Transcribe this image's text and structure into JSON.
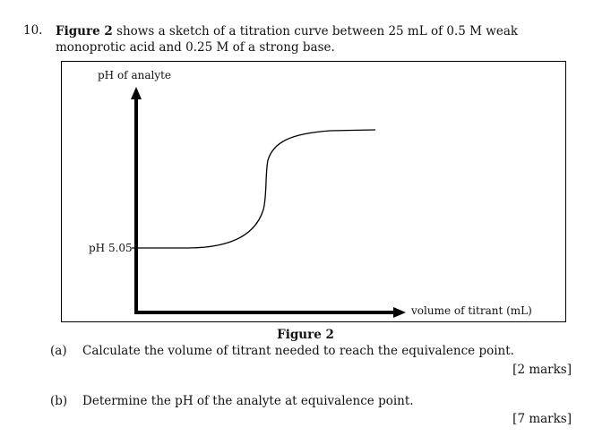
{
  "question": {
    "number": "10.",
    "fig_ref": "Figure 2",
    "text_rest": " shows a sketch of a titration curve between 25 mL of 0.5 M weak monoprotic acid and 0.25 M of a strong base."
  },
  "figure": {
    "y_axis_label": "pH of analyte",
    "x_axis_label": "volume of titrant (mL)",
    "ph_start_label": "pH 5.05",
    "caption": "Figure 2"
  },
  "parts": [
    {
      "label": "(a)",
      "text": "Calculate the volume of titrant needed to reach the equivalence point.",
      "marks": "[2 marks]"
    },
    {
      "label": "(b)",
      "text": "Determine the pH of the analyte at equivalence point.",
      "marks": "[7 marks]"
    }
  ]
}
